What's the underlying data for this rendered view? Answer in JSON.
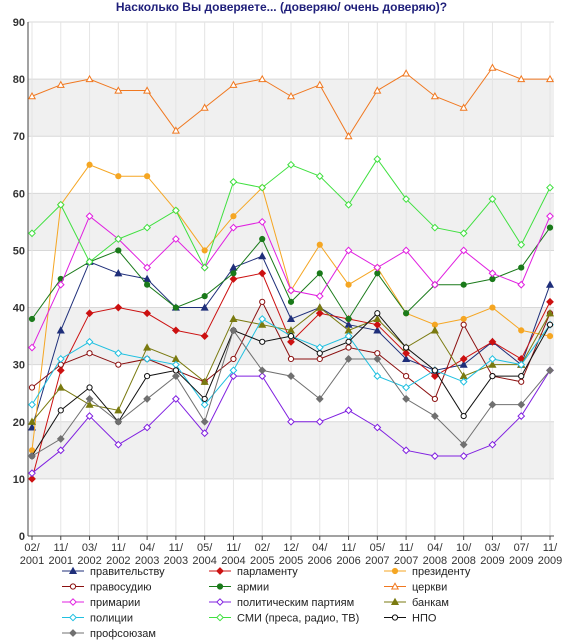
{
  "chart_data": {
    "type": "line",
    "title": "Насколько Вы доверяете... (доверяю/ очень доверяю)?",
    "xlabel": "",
    "ylabel": "",
    "ylim": [
      0,
      90
    ],
    "yticks": [
      0,
      10,
      20,
      30,
      40,
      50,
      60,
      70,
      80,
      90
    ],
    "grid": true,
    "legend_position": "bottom",
    "categories": [
      "02/2001",
      "11/2001",
      "03/2002",
      "11/2002",
      "04/2003",
      "11/2003",
      "05/2004",
      "11/2004",
      "02/2005",
      "12/2005",
      "04/2006",
      "11/2006",
      "05/2007",
      "11/2007",
      "04/2008",
      "10/2008",
      "03/2009",
      "07/2009",
      "11/2009"
    ],
    "tick_labels": [
      [
        "02/",
        "2001"
      ],
      [
        "11/",
        "2001"
      ],
      [
        "03/",
        "2002"
      ],
      [
        "11/",
        "2002"
      ],
      [
        "04/",
        "2003"
      ],
      [
        "11/",
        "2003"
      ],
      [
        "05/",
        "2004"
      ],
      [
        "11/",
        "2004"
      ],
      [
        "02/",
        "2005"
      ],
      [
        "12/",
        "2005"
      ],
      [
        "04/",
        "2006"
      ],
      [
        "11/",
        "2006"
      ],
      [
        "05/",
        "2007"
      ],
      [
        "11/",
        "2007"
      ],
      [
        "04/",
        "2008"
      ],
      [
        "10/",
        "2008"
      ],
      [
        "03/",
        "2009"
      ],
      [
        "07/",
        "2009"
      ],
      [
        "11/",
        "2009"
      ]
    ],
    "series": [
      {
        "name": "правительству",
        "color": "#1f2f7a",
        "marker": "triangle",
        "filled": true,
        "x": [
          0,
          1,
          2,
          3,
          4,
          5,
          6,
          7,
          8,
          9,
          10,
          11,
          12,
          13,
          14,
          15,
          16,
          17,
          18
        ],
        "values": [
          19,
          36,
          48,
          46,
          45,
          40,
          40,
          47,
          49,
          38,
          40,
          37,
          36,
          31,
          29,
          30,
          34,
          30,
          44
        ]
      },
      {
        "name": "парламенту",
        "color": "#cc1111",
        "marker": "diamond",
        "filled": true,
        "x": [
          0,
          1,
          2,
          3,
          4,
          5,
          6,
          7,
          8,
          9,
          10,
          11,
          12,
          13,
          14,
          15,
          16,
          17,
          18
        ],
        "values": [
          10,
          29,
          39,
          40,
          39,
          36,
          35,
          45,
          46,
          34,
          39,
          38,
          37,
          32,
          28,
          31,
          34,
          31,
          41
        ]
      },
      {
        "name": "президенту",
        "color": "#f5a623",
        "marker": "circle",
        "filled": true,
        "x": [
          0,
          1,
          2,
          3,
          4,
          5,
          6,
          7,
          8,
          9,
          10,
          11,
          12,
          13,
          14,
          15,
          16,
          17,
          18
        ],
        "values": [
          15,
          58,
          65,
          63,
          63,
          57,
          50,
          56,
          61,
          43,
          51,
          44,
          47,
          39,
          37,
          38,
          40,
          36,
          35
        ]
      },
      {
        "name": "правосудию",
        "color": "#8b1010",
        "marker": "circle",
        "filled": false,
        "x": [
          0,
          1,
          2,
          3,
          4,
          5,
          6,
          7,
          8,
          9,
          10,
          11,
          12,
          13,
          14,
          15,
          16,
          17,
          18
        ],
        "values": [
          26,
          30,
          32,
          30,
          31,
          29,
          27,
          31,
          41,
          31,
          31,
          33,
          32,
          28,
          24,
          37,
          28,
          27,
          39
        ]
      },
      {
        "name": "армии",
        "color": "#1a7a1a",
        "marker": "circle",
        "filled": true,
        "x": [
          0,
          1,
          2,
          3,
          4,
          5,
          6,
          7,
          8,
          9,
          10,
          11,
          12,
          13,
          14,
          15,
          16,
          17,
          18
        ],
        "values": [
          38,
          45,
          48,
          50,
          44,
          40,
          42,
          46,
          52,
          41,
          46,
          38,
          46,
          39,
          44,
          44,
          45,
          47,
          54
        ]
      },
      {
        "name": "церкви",
        "color": "#f07820",
        "marker": "triangle",
        "filled": false,
        "x": [
          0,
          1,
          2,
          3,
          4,
          5,
          6,
          7,
          8,
          9,
          10,
          11,
          12,
          13,
          14,
          15,
          16,
          17,
          18
        ],
        "values": [
          77,
          79,
          80,
          78,
          78,
          71,
          75,
          79,
          80,
          77,
          79,
          70,
          78,
          81,
          77,
          75,
          82,
          80,
          80
        ]
      },
      {
        "name": "примарии",
        "color": "#e020e0",
        "marker": "diamond",
        "filled": false,
        "x": [
          0,
          1,
          2,
          3,
          4,
          5,
          6,
          7,
          8,
          9,
          10,
          11,
          12,
          13,
          14,
          15,
          16,
          17,
          18
        ],
        "values": [
          33,
          44,
          56,
          52,
          47,
          52,
          47,
          54,
          55,
          43,
          42,
          50,
          47,
          50,
          44,
          50,
          46,
          44,
          56
        ]
      },
      {
        "name": "политическим партиям",
        "color": "#8020e0",
        "marker": "diamond",
        "filled": false,
        "x": [
          0,
          1,
          2,
          3,
          4,
          5,
          6,
          7,
          8,
          9,
          10,
          11,
          12,
          13,
          14,
          15,
          16,
          17,
          18
        ],
        "values": [
          11,
          15,
          21,
          16,
          19,
          24,
          18,
          28,
          28,
          20,
          20,
          22,
          19,
          15,
          14,
          14,
          16,
          21,
          29
        ]
      },
      {
        "name": "банкам",
        "color": "#7a7a10",
        "marker": "triangle",
        "filled": true,
        "x": [
          0,
          1,
          2,
          3,
          4,
          5,
          6,
          7,
          8,
          9,
          10,
          11,
          12,
          13,
          14,
          15,
          16,
          17,
          18
        ],
        "values": [
          20,
          26,
          23,
          22,
          33,
          31,
          27,
          38,
          37,
          36,
          40,
          36,
          38,
          33,
          36,
          28,
          30,
          30,
          39
        ]
      },
      {
        "name": "полиции",
        "color": "#20c0e0",
        "marker": "diamond",
        "filled": false,
        "x": [
          0,
          1,
          2,
          3,
          4,
          5,
          6,
          7,
          8,
          9,
          10,
          11,
          12,
          13,
          14,
          15,
          16,
          17,
          18
        ],
        "values": [
          23,
          31,
          34,
          32,
          31,
          30,
          23,
          29,
          38,
          35,
          33,
          35,
          28,
          26,
          29,
          27,
          31,
          30,
          37
        ]
      },
      {
        "name": "СМИ (преса, радио, ТВ)",
        "color": "#40e040",
        "marker": "diamond",
        "filled": false,
        "x": [
          0,
          1,
          2,
          3,
          4,
          5,
          6,
          7,
          8,
          9,
          10,
          11,
          12,
          13,
          14,
          15,
          16,
          17,
          18
        ],
        "values": [
          53,
          58,
          48,
          52,
          54,
          57,
          47,
          62,
          61,
          65,
          63,
          58,
          66,
          59,
          54,
          53,
          59,
          51,
          61
        ]
      },
      {
        "name": "НПО",
        "color": "#111111",
        "marker": "circle",
        "filled": false,
        "x": [
          0,
          1,
          2,
          3,
          4,
          5,
          6,
          7,
          8,
          9,
          10,
          11,
          12,
          13,
          14,
          15,
          16,
          17,
          18
        ],
        "values": [
          14,
          22,
          26,
          20,
          28,
          29,
          24,
          36,
          34,
          35,
          32,
          34,
          39,
          33,
          29,
          21,
          28,
          28,
          37
        ]
      },
      {
        "name": "профсоюзам",
        "color": "#707070",
        "marker": "diamond",
        "filled": true,
        "x": [
          0,
          1,
          2,
          3,
          4,
          5,
          6,
          7,
          8,
          9,
          10,
          11,
          12,
          13,
          14,
          15,
          16,
          17,
          18
        ],
        "values": [
          14,
          17,
          24,
          20,
          24,
          28,
          20,
          36,
          29,
          28,
          24,
          31,
          31,
          24,
          21,
          16,
          23,
          23,
          29
        ]
      }
    ]
  }
}
